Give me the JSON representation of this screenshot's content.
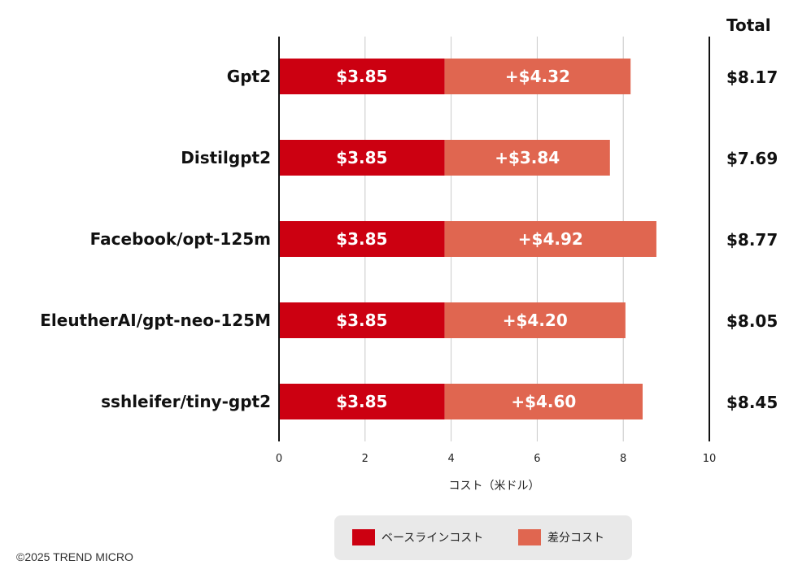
{
  "chart_data": {
    "type": "bar",
    "orientation": "horizontal",
    "stacked": true,
    "categories": [
      "Gpt2",
      "Distilgpt2",
      "Facebook/opt-125m",
      "EleutherAI/gpt-neo-125M",
      "sshleifer/tiny-gpt2"
    ],
    "series": [
      {
        "name": "ベースラインコスト",
        "values": [
          3.85,
          3.85,
          3.85,
          3.85,
          3.85
        ],
        "labels": [
          "$3.85",
          "$3.85",
          "$3.85",
          "$3.85",
          "$3.85"
        ],
        "color": "#cc0011"
      },
      {
        "name": "差分コスト",
        "values": [
          4.32,
          3.84,
          4.92,
          4.2,
          4.6
        ],
        "labels": [
          "+$4.32",
          "+$3.84",
          "+$4.92",
          "+$4.20",
          "+$4.60"
        ],
        "color": "#e06650"
      }
    ],
    "totals_header": "Total",
    "totals": [
      "$8.17",
      "$7.69",
      "$8.77",
      "$8.05",
      "$8.45"
    ],
    "xlabel": "コスト（米ドル）",
    "xlim": [
      0,
      10
    ],
    "xticks": [
      0,
      2,
      4,
      6,
      8,
      10
    ],
    "grid": "vertical",
    "legend_position": "bottom"
  },
  "legend": {
    "items": [
      {
        "label": "ベースラインコスト",
        "color": "#cc0011"
      },
      {
        "label": "差分コスト",
        "color": "#e06650"
      }
    ]
  },
  "footer": {
    "copyright": "©2025 TREND MICRO"
  },
  "colors": {
    "grid": "#c8c8c8",
    "axis": "#111111",
    "background": "#ffffff",
    "legend_bg": "#e9e9e9"
  }
}
